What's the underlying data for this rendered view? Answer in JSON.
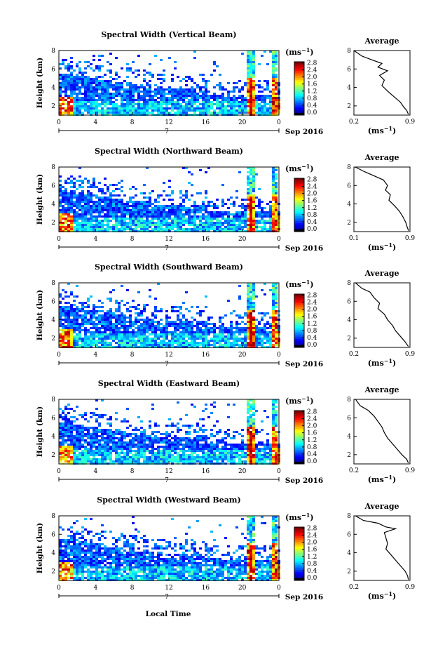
{
  "figure": {
    "xlabel": "Local Time",
    "date_label": "Sep 2016",
    "day_label": "7",
    "colorbar_unit": "(ms",
    "colorbar_unit_exp": "−1",
    "side_title": "Average",
    "side_xlabel": "(ms",
    "side_xlabel_exp": "−1"
  },
  "chart_data": [
    {
      "type": "heatmap",
      "title": "Spectral Width (Vertical Beam)",
      "ylabel": "Height (km)",
      "x_ticks": [
        "0",
        "4",
        "8",
        "12",
        "16",
        "20",
        "0"
      ],
      "xlim": [
        0,
        24
      ],
      "ylim": [
        1,
        8
      ],
      "y_ticks": [
        "2",
        "4",
        "6",
        "8"
      ],
      "colorbar_ticks": [
        "0.0",
        "0.4",
        "0.8",
        "1.2",
        "1.6",
        "2.0",
        "2.4",
        "2.8"
      ],
      "colorbar_range": [
        0,
        3.0
      ],
      "average_profile": {
        "xlim": [
          0.2,
          0.9
        ],
        "x_ticks": [
          "0.2",
          "0.9"
        ],
        "points": [
          [
            0.2,
            8.0
          ],
          [
            0.3,
            7.4
          ],
          [
            0.42,
            7.0
          ],
          [
            0.55,
            6.6
          ],
          [
            0.5,
            6.2
          ],
          [
            0.62,
            5.8
          ],
          [
            0.52,
            5.3
          ],
          [
            0.58,
            4.8
          ],
          [
            0.55,
            4.2
          ],
          [
            0.62,
            3.6
          ],
          [
            0.7,
            3.0
          ],
          [
            0.78,
            2.4
          ],
          [
            0.82,
            1.9
          ],
          [
            0.86,
            1.5
          ],
          [
            0.88,
            1.1
          ]
        ]
      }
    },
    {
      "type": "heatmap",
      "title": "Spectral Width (Northward Beam)",
      "ylabel": "Height (km)",
      "x_ticks": [
        "0",
        "4",
        "8",
        "12",
        "16",
        "20",
        "0"
      ],
      "xlim": [
        0,
        24
      ],
      "ylim": [
        1,
        8
      ],
      "y_ticks": [
        "2",
        "4",
        "6",
        "8"
      ],
      "colorbar_ticks": [
        "0.0",
        "0.4",
        "0.8",
        "1.2",
        "1.6",
        "2.0",
        "2.4",
        "2.8"
      ],
      "colorbar_range": [
        0,
        3.0
      ],
      "average_profile": {
        "xlim": [
          0.1,
          0.9
        ],
        "x_ticks": [
          "0.1",
          "0.9"
        ],
        "points": [
          [
            0.12,
            8.0
          ],
          [
            0.25,
            7.5
          ],
          [
            0.4,
            7.0
          ],
          [
            0.52,
            6.6
          ],
          [
            0.58,
            6.0
          ],
          [
            0.55,
            5.5
          ],
          [
            0.62,
            5.0
          ],
          [
            0.6,
            4.4
          ],
          [
            0.68,
            3.8
          ],
          [
            0.75,
            3.2
          ],
          [
            0.8,
            2.6
          ],
          [
            0.84,
            2.0
          ],
          [
            0.86,
            1.5
          ],
          [
            0.88,
            1.1
          ]
        ]
      }
    },
    {
      "type": "heatmap",
      "title": "Spectral Width (Southward Beam)",
      "ylabel": "Height (km)",
      "x_ticks": [
        "0",
        "4",
        "8",
        "12",
        "16",
        "20",
        "0"
      ],
      "xlim": [
        0,
        24
      ],
      "ylim": [
        1,
        8
      ],
      "y_ticks": [
        "2",
        "4",
        "6",
        "8"
      ],
      "colorbar_ticks": [
        "0.0",
        "0.4",
        "0.8",
        "1.2",
        "1.6",
        "2.0",
        "2.4",
        "2.8"
      ],
      "colorbar_range": [
        0,
        3.0
      ],
      "average_profile": {
        "xlim": [
          0.2,
          0.9
        ],
        "x_ticks": [
          "0.2",
          "0.9"
        ],
        "points": [
          [
            0.22,
            8.0
          ],
          [
            0.3,
            7.4
          ],
          [
            0.4,
            7.0
          ],
          [
            0.45,
            6.4
          ],
          [
            0.52,
            5.8
          ],
          [
            0.5,
            5.2
          ],
          [
            0.58,
            4.6
          ],
          [
            0.62,
            4.0
          ],
          [
            0.68,
            3.4
          ],
          [
            0.72,
            2.8
          ],
          [
            0.78,
            2.2
          ],
          [
            0.84,
            1.6
          ],
          [
            0.88,
            1.1
          ]
        ]
      }
    },
    {
      "type": "heatmap",
      "title": "Spectral Width (Eastward Beam)",
      "ylabel": "Height (km)",
      "x_ticks": [
        "0",
        "4",
        "8",
        "12",
        "16",
        "20",
        "0"
      ],
      "xlim": [
        0,
        24
      ],
      "ylim": [
        1,
        8
      ],
      "y_ticks": [
        "2",
        "4",
        "6",
        "8"
      ],
      "colorbar_ticks": [
        "0.0",
        "0.4",
        "0.8",
        "1.2",
        "1.6",
        "2.0",
        "2.4",
        "2.8"
      ],
      "colorbar_range": [
        0,
        3.0
      ],
      "average_profile": {
        "xlim": [
          0.2,
          0.9
        ],
        "x_ticks": [
          "0.2",
          "0.9"
        ],
        "points": [
          [
            0.22,
            8.0
          ],
          [
            0.28,
            7.3
          ],
          [
            0.38,
            6.8
          ],
          [
            0.45,
            6.2
          ],
          [
            0.5,
            5.6
          ],
          [
            0.55,
            5.0
          ],
          [
            0.58,
            4.4
          ],
          [
            0.62,
            3.8
          ],
          [
            0.68,
            3.2
          ],
          [
            0.74,
            2.6
          ],
          [
            0.8,
            2.0
          ],
          [
            0.86,
            1.5
          ],
          [
            0.88,
            1.1
          ]
        ]
      }
    },
    {
      "type": "heatmap",
      "title": "Spectral Width (Westward Beam)",
      "ylabel": "Height (km)",
      "x_ticks": [
        "0",
        "4",
        "8",
        "12",
        "16",
        "20",
        "0"
      ],
      "xlim": [
        0,
        24
      ],
      "ylim": [
        1,
        8
      ],
      "y_ticks": [
        "2",
        "4",
        "6",
        "8"
      ],
      "colorbar_ticks": [
        "0.0",
        "0.4",
        "0.8",
        "1.2",
        "1.6",
        "2.0",
        "2.4",
        "2.8"
      ],
      "colorbar_range": [
        0,
        3.0
      ],
      "average_profile": {
        "xlim": [
          0.2,
          0.9
        ],
        "x_ticks": [
          "0.2",
          "0.9"
        ],
        "points": [
          [
            0.22,
            8.0
          ],
          [
            0.32,
            7.5
          ],
          [
            0.5,
            7.2
          ],
          [
            0.6,
            6.8
          ],
          [
            0.72,
            6.6
          ],
          [
            0.58,
            6.2
          ],
          [
            0.6,
            5.6
          ],
          [
            0.62,
            5.0
          ],
          [
            0.6,
            4.4
          ],
          [
            0.66,
            3.8
          ],
          [
            0.72,
            3.2
          ],
          [
            0.78,
            2.6
          ],
          [
            0.84,
            2.0
          ],
          [
            0.87,
            1.5
          ],
          [
            0.88,
            1.1
          ]
        ]
      }
    }
  ]
}
